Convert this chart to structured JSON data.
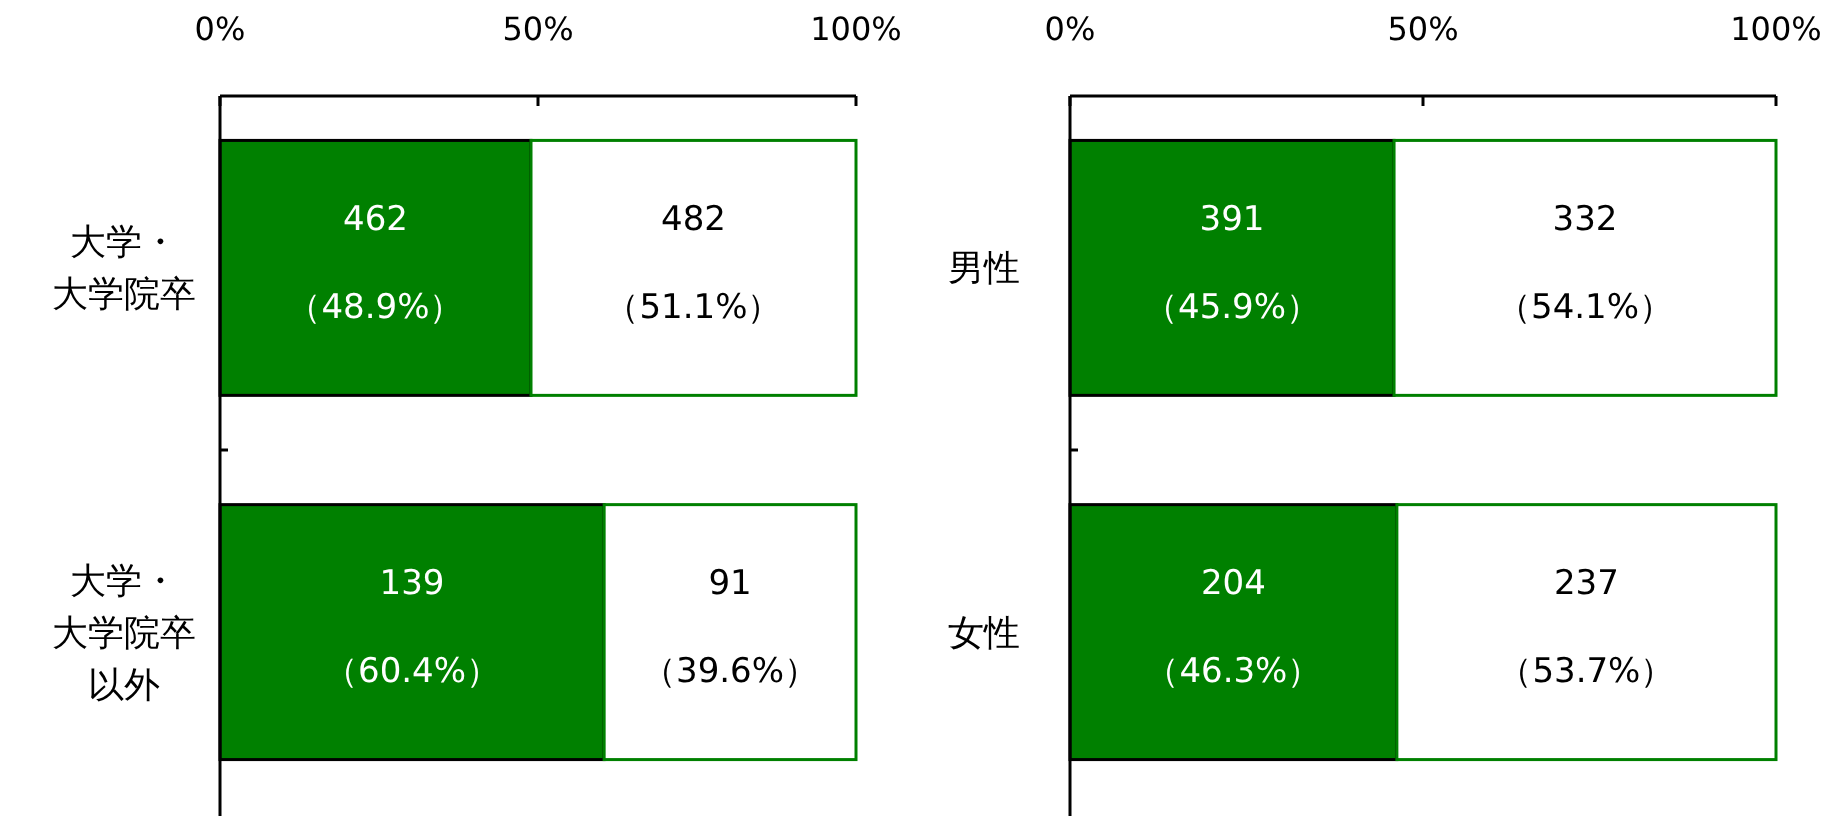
{
  "chart_data": [
    {
      "type": "bar",
      "orientation": "horizontal",
      "stacked": true,
      "categories": [
        "大学・大学院卒",
        "大学・大学院卒以外"
      ],
      "xlim": [
        0,
        100
      ],
      "xticks": [
        {
          "value": 0,
          "label": "0%"
        },
        {
          "value": 50,
          "label": "50%"
        },
        {
          "value": 100,
          "label": "100%"
        }
      ],
      "series": [
        {
          "color": "#008000",
          "values": [
            48.9,
            60.4
          ],
          "value_labels": [
            "462\n（48.9%）",
            "139\n（60.4%）"
          ]
        },
        {
          "color": "#ffffff",
          "values": [
            51.1,
            39.6
          ],
          "value_labels": [
            "482\n（51.1%）",
            "91\n（39.6%）"
          ]
        }
      ]
    },
    {
      "type": "bar",
      "orientation": "horizontal",
      "stacked": true,
      "categories": [
        "男性",
        "女性"
      ],
      "xlim": [
        0,
        100
      ],
      "xticks": [
        {
          "value": 0,
          "label": "0%"
        },
        {
          "value": 50,
          "label": "50%"
        },
        {
          "value": 100,
          "label": "100%"
        }
      ],
      "series": [
        {
          "color": "#008000",
          "values": [
            45.9,
            46.3
          ],
          "value_labels": [
            "391\n（45.9%）",
            "204\n（46.3%）"
          ]
        },
        {
          "color": "#ffffff",
          "values": [
            54.1,
            53.7
          ],
          "value_labels": [
            "332\n（54.1%）",
            "237\n（53.7%）"
          ]
        }
      ]
    }
  ]
}
